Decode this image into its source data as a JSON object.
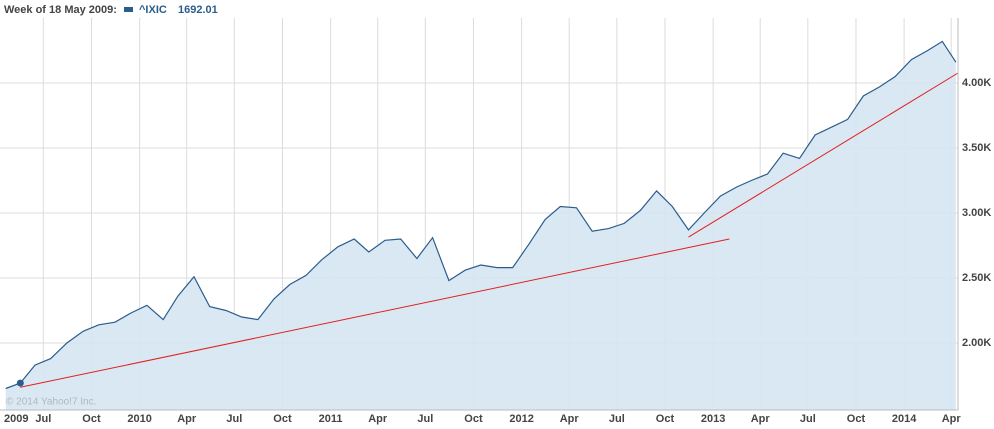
{
  "chart_data": {
    "type": "area",
    "hover_label": "Week of 18 May 2009:",
    "watermark": "© 2014 Yahoo!7 Inc.",
    "x": [
      "2009-04-20",
      "2009-05-18",
      "2009-06-15",
      "2009-07-15",
      "2009-08-15",
      "2009-09-15",
      "2009-10-15",
      "2009-11-15",
      "2009-12-15",
      "2010-01-15",
      "2010-02-15",
      "2010-03-15",
      "2010-04-15",
      "2010-05-15",
      "2010-06-15",
      "2010-07-15",
      "2010-08-15",
      "2010-09-15",
      "2010-10-15",
      "2010-11-15",
      "2010-12-15",
      "2011-01-15",
      "2011-02-15",
      "2011-03-15",
      "2011-04-15",
      "2011-05-15",
      "2011-06-15",
      "2011-07-15",
      "2011-08-15",
      "2011-09-15",
      "2011-10-15",
      "2011-11-15",
      "2011-12-15",
      "2012-01-15",
      "2012-02-15",
      "2012-03-15",
      "2012-04-15",
      "2012-05-15",
      "2012-06-15",
      "2012-07-15",
      "2012-08-15",
      "2012-09-15",
      "2012-10-15",
      "2012-11-15",
      "2012-12-15",
      "2013-01-15",
      "2013-02-15",
      "2013-03-15",
      "2013-04-15",
      "2013-05-15",
      "2013-06-15",
      "2013-07-15",
      "2013-08-15",
      "2013-09-15",
      "2013-10-15",
      "2013-11-15",
      "2013-12-15",
      "2014-01-15",
      "2014-02-15",
      "2014-03-15",
      "2014-04-10"
    ],
    "series": [
      {
        "name": "^IXIC",
        "color": "#2b5d8c",
        "fill": "#d6e6f2",
        "values": [
          1650,
          1692.01,
          1830,
          1880,
          2000,
          2090,
          2140,
          2160,
          2230,
          2290,
          2180,
          2360,
          2510,
          2280,
          2250,
          2200,
          2180,
          2340,
          2450,
          2520,
          2640,
          2740,
          2800,
          2700,
          2790,
          2800,
          2650,
          2810,
          2480,
          2560,
          2600,
          2580,
          2580,
          2760,
          2950,
          3050,
          3040,
          2860,
          2880,
          2920,
          3020,
          3170,
          3050,
          2870,
          3000,
          3130,
          3200,
          3250,
          3300,
          3460,
          3420,
          3600,
          3660,
          3720,
          3900,
          3970,
          4050,
          4180,
          4250,
          4320,
          4160
        ]
      }
    ],
    "highlight_index": 1,
    "trendlines": [
      {
        "color": "#e0201f",
        "x": [
          "2009-05-18",
          "2013-02-01"
        ],
        "y": [
          1660,
          2800
        ]
      },
      {
        "color": "#e0201f",
        "x": [
          "2012-11-15",
          "2014-04-14"
        ],
        "y": [
          2815,
          4077
        ]
      }
    ],
    "xlim": [
      "2009-04-13",
      "2014-04-14"
    ],
    "ylim": [
      1485,
      4500
    ],
    "yticks": [
      {
        "value": 2000,
        "label": "2.00K"
      },
      {
        "value": 2500,
        "label": "2.50K"
      },
      {
        "value": 3000,
        "label": "3.00K"
      },
      {
        "value": 3500,
        "label": "3.50K"
      },
      {
        "value": 4000,
        "label": "4.00K"
      }
    ],
    "xticks": [
      {
        "value": "2009-04-13",
        "label": "2009"
      },
      {
        "value": "2009-07-01",
        "label": "Jul"
      },
      {
        "value": "2009-10-01",
        "label": "Oct"
      },
      {
        "value": "2010-01-01",
        "label": "2010"
      },
      {
        "value": "2010-04-01",
        "label": "Apr"
      },
      {
        "value": "2010-07-01",
        "label": "Jul"
      },
      {
        "value": "2010-10-01",
        "label": "Oct"
      },
      {
        "value": "2011-01-01",
        "label": "2011"
      },
      {
        "value": "2011-04-01",
        "label": "Apr"
      },
      {
        "value": "2011-07-01",
        "label": "Jul"
      },
      {
        "value": "2011-10-01",
        "label": "Oct"
      },
      {
        "value": "2012-01-01",
        "label": "2012"
      },
      {
        "value": "2012-04-01",
        "label": "Apr"
      },
      {
        "value": "2012-07-01",
        "label": "Jul"
      },
      {
        "value": "2012-10-01",
        "label": "Oct"
      },
      {
        "value": "2013-01-01",
        "label": "2013"
      },
      {
        "value": "2013-04-01",
        "label": "Apr"
      },
      {
        "value": "2013-07-01",
        "label": "Jul"
      },
      {
        "value": "2013-10-01",
        "label": "Oct"
      },
      {
        "value": "2014-01-01",
        "label": "2014"
      },
      {
        "value": "2014-04-01",
        "label": "Apr"
      }
    ],
    "grid": true
  }
}
